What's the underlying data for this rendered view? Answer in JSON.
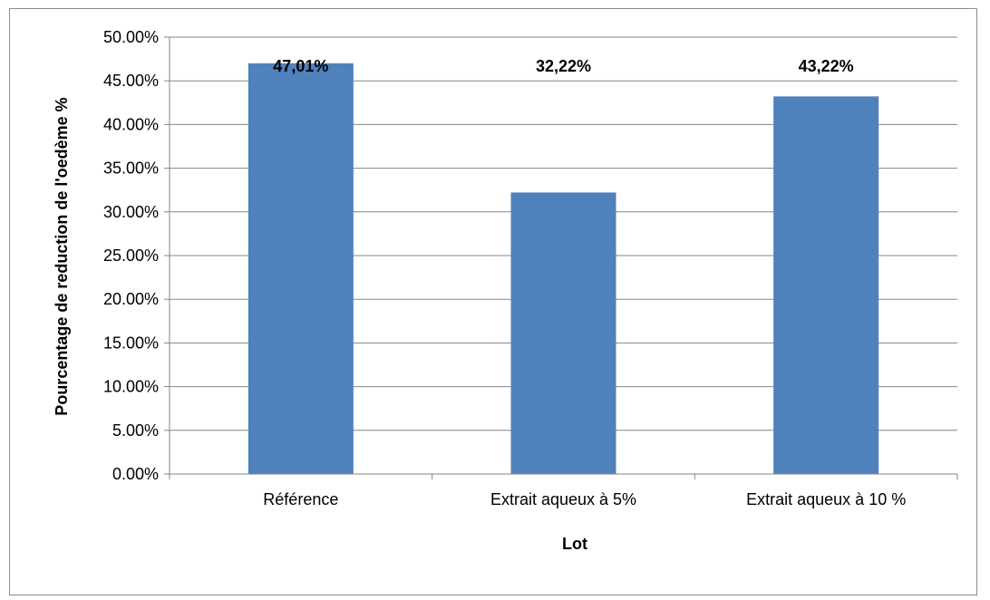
{
  "chart_data": {
    "type": "bar",
    "title": "",
    "xlabel": "Lot",
    "ylabel": "Pourcentage de reduction de l'oedème %",
    "categories": [
      "Référence",
      "Extrait aqueux à 5%",
      "Extrait aqueux à 10 %"
    ],
    "values": [
      47.01,
      32.22,
      43.22
    ],
    "data_labels": [
      "47,01%",
      "32,22%",
      "43,22%"
    ],
    "ylim": [
      0,
      50
    ],
    "yticks": [
      0,
      5,
      10,
      15,
      20,
      25,
      30,
      35,
      40,
      45,
      50
    ],
    "ytick_labels": [
      "0.00%",
      "5.00%",
      "10.00%",
      "15.00%",
      "20.00%",
      "25.00%",
      "30.00%",
      "35.00%",
      "40.00%",
      "45.00%",
      "50.00%"
    ],
    "grid": true,
    "legend": "none",
    "bar_color": "#4f81bd",
    "grid_color": "#868686"
  }
}
